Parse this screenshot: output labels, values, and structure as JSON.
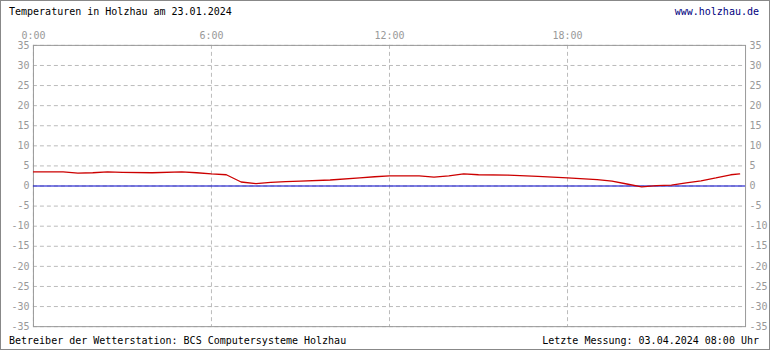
{
  "chart_data": {
    "type": "line",
    "title": "Temperaturen in Holzhau am 23.01.2024",
    "annotations": [
      "www.holzhau.de",
      "Betreiber der Wetterstation: BCS Computersysteme Holzhau",
      "Letzte Messung: 03.04.2024 08:00 Uhr"
    ],
    "x": [
      0,
      1,
      1.5,
      2,
      2.5,
      3,
      4,
      5,
      5.5,
      6,
      6.5,
      7,
      7.5,
      8,
      8.5,
      9,
      10,
      11,
      11.5,
      12,
      13,
      13.5,
      14,
      14.5,
      15,
      16,
      17,
      18,
      19,
      19.5,
      20,
      20.5,
      21,
      21.5,
      22,
      22.5,
      23,
      23.5,
      23.8
    ],
    "series": [
      {
        "color": "#cc0000",
        "values": [
          3.5,
          3.5,
          3.2,
          3.3,
          3.5,
          3.4,
          3.3,
          3.5,
          3.3,
          3.0,
          2.8,
          1.0,
          0.6,
          0.9,
          1.1,
          1.2,
          1.5,
          2.0,
          2.3,
          2.5,
          2.5,
          2.2,
          2.5,
          3.0,
          2.8,
          2.7,
          2.4,
          2.0,
          1.6,
          1.2,
          0.5,
          -0.2,
          0.1,
          0.2,
          0.8,
          1.3,
          2.0,
          2.8,
          3.0
        ]
      }
    ],
    "baseline": 0,
    "xlim": [
      0,
      24
    ],
    "xticks": [
      {
        "value": 0,
        "label": "0:00"
      },
      {
        "value": 6,
        "label": "6:00"
      },
      {
        "value": 12,
        "label": "12:00"
      },
      {
        "value": 18,
        "label": "18:00"
      }
    ],
    "ylim": [
      -35,
      35
    ],
    "yticks": [
      -35,
      -30,
      -25,
      -20,
      -15,
      -10,
      -5,
      0,
      5,
      10,
      15,
      20,
      25,
      30,
      35
    ],
    "grid": true
  }
}
